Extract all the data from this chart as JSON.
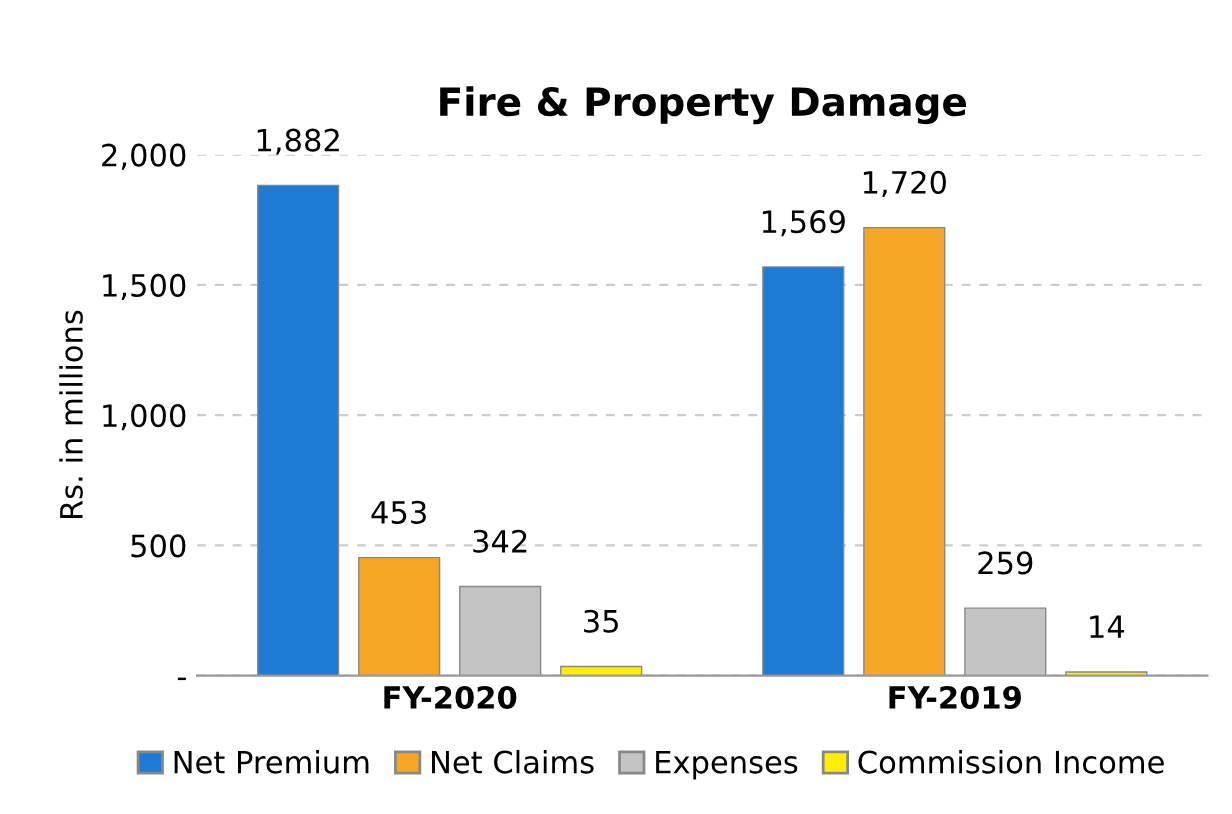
{
  "chart_data": {
    "type": "bar",
    "title": "Fire & Property Damage",
    "ylabel": "Rs. in millions",
    "categories": [
      "FY-2020",
      "FY-2019"
    ],
    "series": [
      {
        "name": "Net Premium",
        "color": "#1f7ad6",
        "values": [
          1882,
          1569
        ],
        "value_labels": [
          "1,882",
          "1,569"
        ]
      },
      {
        "name": "Net Claims",
        "color": "#f5a623",
        "values": [
          453,
          1720
        ],
        "value_labels": [
          "453",
          "1,720"
        ]
      },
      {
        "name": "Expenses",
        "color": "#c4c4c4",
        "values": [
          342,
          259
        ],
        "value_labels": [
          "342",
          "259"
        ]
      },
      {
        "name": "Commission Income",
        "color": "#ffee00",
        "values": [
          35,
          14
        ],
        "value_labels": [
          "35",
          "14"
        ]
      }
    ],
    "ylim": [
      0,
      2000
    ],
    "yticks": [
      {
        "value": 0,
        "label": "-"
      },
      500,
      {
        "value": 1000,
        "label": "1,000"
      },
      {
        "value": 1500,
        "label": "1,500"
      },
      {
        "value": 2000,
        "label": "2,000"
      }
    ],
    "grid": "y",
    "legend": "bottom"
  }
}
